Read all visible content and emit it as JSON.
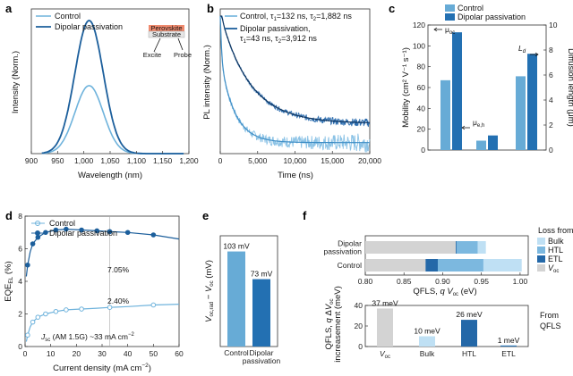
{
  "colors": {
    "light": "#6fb3dc",
    "dark": "#1c5f9c",
    "light_bar": "#67abd6",
    "dark_bar": "#2370b2",
    "bulk": "#bfe0f4",
    "htl": "#7cb8df",
    "etl": "#2468a8",
    "voc": "#d3d3d3"
  },
  "panels": {
    "a": {
      "letter": "a"
    },
    "b": {
      "letter": "b"
    },
    "c": {
      "letter": "c"
    },
    "d": {
      "letter": "d"
    },
    "e": {
      "letter": "e"
    },
    "f": {
      "letter": "f"
    }
  },
  "chart_data": [
    {
      "id": "a",
      "type": "line",
      "xlabel": "Wavelength (nm)",
      "ylabel": "Intensity (Norm.)",
      "xlim": [
        900,
        1200
      ],
      "ylim": [
        0,
        1
      ],
      "xticks": [
        "900",
        "950",
        "1,000",
        "1,050",
        "1,100",
        "1,150",
        "1,200"
      ],
      "series": [
        {
          "name": "Control",
          "peak_x": 1010,
          "peak_y": 0.47,
          "width": 40
        },
        {
          "name": "Dipolar passivation",
          "peak_x": 1010,
          "peak_y": 0.92,
          "width": 40
        }
      ],
      "inset": {
        "top": "Perovskite",
        "bottom": "Substrate",
        "left": "Excite",
        "right": "Probe"
      }
    },
    {
      "id": "b",
      "type": "line",
      "xlabel": "Time (ns)",
      "ylabel": "PL intensity (Norm.)",
      "xlim": [
        0,
        20000
      ],
      "xticks": [
        "0",
        "5,000",
        "10,000",
        "15,000",
        "20,000"
      ],
      "series": [
        {
          "name": "Control, τ1=132 ns, τ2=1,882 ns",
          "line1": "Control, τ",
          "sub1": "1",
          "mid": "=132 ns, τ",
          "sub2": "2",
          "end": "=1,882 ns",
          "tau2": 1882,
          "a1": 0.35,
          "a2": 0.62,
          "floor": 0.08
        },
        {
          "name": "Dipolar passivation, τ1=43 ns, τ2=3,912 ns",
          "line1": "Dipolar passivation,",
          "line2a": "τ",
          "sub1": "1",
          "mid": "=43 ns, τ",
          "sub2": "2",
          "end": "=3,912 ns",
          "tau2": 3912,
          "a1": 0.12,
          "a2": 0.8,
          "floor": 0.22
        }
      ]
    },
    {
      "id": "c",
      "type": "bar",
      "ylabel": "Mobility (cm² V⁻¹ s⁻¹)",
      "y2label": "Diffusion length (μm)",
      "ylim": [
        0,
        120
      ],
      "y2lim": [
        0,
        10
      ],
      "yticks": [
        "0",
        "20",
        "40",
        "60",
        "80",
        "100",
        "120"
      ],
      "y2ticks": [
        "0",
        "2",
        "4",
        "6",
        "8",
        "10"
      ],
      "groups": [
        {
          "label": "μoc",
          "control": 67,
          "dipolar": 113,
          "axis": "left"
        },
        {
          "label": "μe,h",
          "control": 9,
          "dipolar": 14,
          "axis": "left"
        },
        {
          "label": "Ld",
          "control": 5.9,
          "dipolar": 7.7,
          "axis": "right"
        }
      ],
      "legend": [
        "Control",
        "Dipolar passivation"
      ]
    },
    {
      "id": "d",
      "type": "line",
      "xlabel": "Current density (mA cm⁻²)",
      "ylabel": "EQE_EL (%)",
      "xlim": [
        0,
        60
      ],
      "ylim": [
        0,
        8
      ],
      "xticks": [
        "0",
        "10",
        "20",
        "30",
        "40",
        "50",
        "60"
      ],
      "yticks": [
        "0",
        "2",
        "4",
        "6",
        "8"
      ],
      "series": [
        {
          "name": "Control",
          "x": [
            0.5,
            1,
            2,
            3,
            5,
            8,
            12,
            16,
            22,
            28,
            33,
            40,
            50,
            60
          ],
          "y": [
            0.3,
            0.7,
            1.2,
            1.5,
            1.8,
            2.0,
            2.15,
            2.25,
            2.3,
            2.35,
            2.4,
            2.45,
            2.55,
            2.6
          ],
          "markers_x": [
            1,
            3,
            5,
            8,
            12,
            16,
            22,
            33,
            50
          ]
        },
        {
          "name": "Dipolar passivation",
          "x": [
            0.5,
            1,
            2,
            3,
            5,
            8,
            12,
            16,
            22,
            28,
            33,
            40,
            50,
            60
          ],
          "y": [
            4.3,
            5.0,
            5.8,
            6.3,
            6.7,
            7.0,
            7.15,
            7.2,
            7.15,
            7.1,
            7.05,
            7.0,
            6.85,
            6.6
          ],
          "markers_x": [
            1,
            3,
            5,
            8,
            12,
            16,
            22,
            28,
            33,
            40,
            50
          ]
        }
      ],
      "annotations": [
        "7.05%",
        "2.40%"
      ],
      "jsc": {
        "a": "J",
        "sub": "sc",
        "rest": " (AM 1.5G) ~33 mA cm",
        "sup": "−2"
      },
      "vline_x": 33
    },
    {
      "id": "e",
      "type": "bar",
      "ylabel": "V_oc,rad − V_oc (mV)",
      "categories": [
        "Control",
        "Dipolar passivation"
      ],
      "category_lines": [
        [
          "Control"
        ],
        [
          "Dipolar",
          "passivation"
        ]
      ],
      "values": [
        103,
        73
      ],
      "labels": [
        "103 mV",
        "73 mV"
      ],
      "ylim": [
        0,
        120
      ]
    },
    {
      "id": "f_top",
      "type": "bar",
      "orientation": "horizontal-stacked",
      "xlabel": "QFLS, q Voc (eV)",
      "xlim": [
        0.8,
        1.0
      ],
      "xticks": [
        "0.80",
        "0.85",
        "0.90",
        "0.95",
        "1.00"
      ],
      "rows": [
        {
          "label": "Dipolar passivation",
          "label_lines": [
            "Dipolar",
            "passivation"
          ],
          "voc": 0.911,
          "etl": 0.001,
          "htl": 0.026,
          "bulk": 0.01
        },
        {
          "label": "Control",
          "label_lines": [
            "Control"
          ],
          "voc": 0.874,
          "etl": 0.015,
          "htl": 0.056,
          "bulk": 0.047
        }
      ],
      "legend_title": "Loss from",
      "legend": [
        "Bulk",
        "HTL",
        "ETL",
        "Voc"
      ]
    },
    {
      "id": "f_bottom",
      "type": "bar",
      "ylabel": "QFLS, q ΔVoc increasement (meV)",
      "categories": [
        "Voc",
        "Bulk",
        "HTL",
        "ETL"
      ],
      "values": [
        37,
        10,
        26,
        1
      ],
      "labels": [
        "37 meV",
        "10 meV",
        "26 meV",
        "1 meV"
      ],
      "ylim": [
        0,
        40
      ],
      "yticks": [
        "0",
        "20",
        "40"
      ],
      "side_label": [
        "From",
        "QFLS"
      ]
    }
  ]
}
